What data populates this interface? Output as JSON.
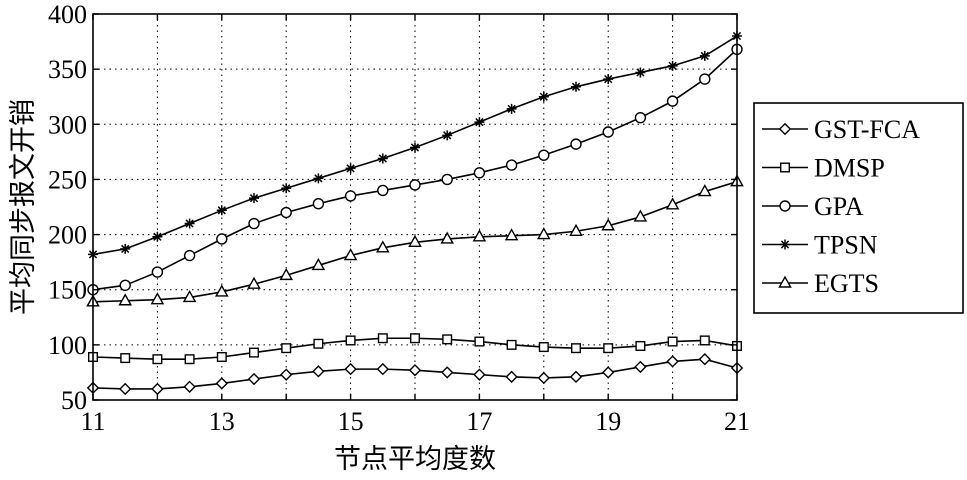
{
  "chart_data": {
    "type": "line",
    "title": "",
    "xlabel": "节点平均度数",
    "ylabel": "平均同步报文开销",
    "xlim": [
      11,
      21
    ],
    "ylim": [
      50,
      400
    ],
    "xticks": [
      11,
      13,
      15,
      17,
      19,
      21
    ],
    "yticks": [
      50,
      100,
      150,
      200,
      250,
      300,
      350,
      400
    ],
    "grid": true,
    "legend_position": "right",
    "x": [
      11,
      11.5,
      12,
      12.5,
      13,
      13.5,
      14,
      14.5,
      15,
      15.5,
      16,
      16.5,
      17,
      17.5,
      18,
      18.5,
      19,
      19.5,
      20,
      20.5,
      21
    ],
    "series": [
      {
        "name": "GST-FCA",
        "marker": "diamond",
        "values": [
          61,
          60,
          60,
          62,
          65,
          69,
          73,
          76,
          78,
          78,
          77,
          75,
          73,
          71,
          70,
          71,
          75,
          80,
          85,
          87,
          79
        ]
      },
      {
        "name": "DMSP",
        "marker": "square",
        "values": [
          89,
          88,
          87,
          87,
          89,
          93,
          97,
          101,
          104,
          106,
          106,
          105,
          103,
          100,
          98,
          97,
          97,
          99,
          103,
          104,
          99
        ]
      },
      {
        "name": "GPA",
        "marker": "circle",
        "values": [
          150,
          154,
          166,
          181,
          196,
          210,
          220,
          228,
          235,
          240,
          245,
          250,
          256,
          263,
          272,
          282,
          293,
          306,
          321,
          341,
          368
        ]
      },
      {
        "name": "TPSN",
        "marker": "star",
        "values": [
          182,
          187,
          198,
          210,
          222,
          233,
          242,
          251,
          260,
          269,
          279,
          290,
          302,
          314,
          325,
          334,
          341,
          347,
          353,
          362,
          380
        ]
      },
      {
        "name": "EGTS",
        "marker": "triangle",
        "values": [
          139,
          140,
          141,
          143,
          148,
          155,
          163,
          172,
          181,
          188,
          193,
          196,
          198,
          199,
          200,
          203,
          208,
          216,
          227,
          239,
          248
        ]
      }
    ]
  }
}
